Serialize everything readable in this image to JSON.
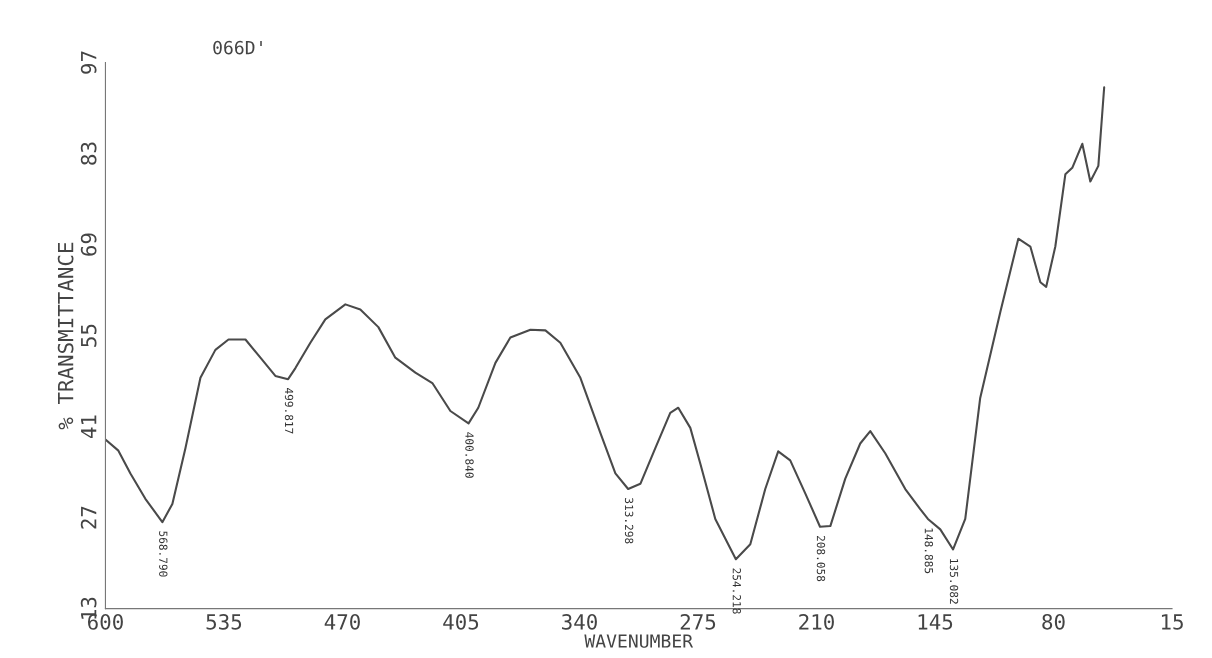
{
  "chart_data": {
    "type": "line",
    "title": "066D'",
    "xlabel": "WAVENUMBER",
    "ylabel": "% TRANSMITTANCE",
    "xlim": [
      600,
      15
    ],
    "ylim": [
      13,
      97
    ],
    "xticks": [
      600,
      535,
      470,
      405,
      340,
      275,
      210,
      145,
      80,
      15
    ],
    "yticks": [
      13,
      27,
      41,
      55,
      69,
      83,
      97
    ],
    "grid": false,
    "marker": "none",
    "line_style": "solid",
    "series": [
      {
        "color": "#4a4a4a",
        "x": [
          600,
          592.9,
          586.3,
          578.1,
          568.79,
          563.3,
          556.1,
          547.9,
          539.7,
          532.5,
          523.2,
          515.0,
          506.8,
          499.817,
          495.8,
          487.6,
          479.4,
          468.4,
          460.2,
          450.3,
          441.0,
          430.0,
          420.7,
          410.8,
          400.84,
          395.5,
          386.1,
          377.9,
          366.9,
          358.7,
          350.5,
          339.5,
          328.5,
          320.3,
          313.298,
          306.6,
          298.4,
          290.2,
          285.8,
          279.2,
          273.7,
          265.5,
          254.218,
          246.3,
          238.1,
          231.0,
          224.4,
          216.1,
          208.058,
          202.4,
          194.2,
          186.0,
          180.5,
          172.3,
          161.3,
          153.1,
          148.885,
          142.1,
          135.082,
          128.4,
          120.2,
          109.2,
          99.3,
          92.7,
          87.2,
          84.0,
          79.0,
          73.5,
          69.7,
          64.2,
          59.8,
          55.4,
          52.2
        ],
        "values": [
          39.0,
          37.3,
          33.8,
          29.9,
          26.3,
          29.1,
          37.7,
          48.5,
          52.8,
          54.4,
          54.4,
          51.6,
          48.8,
          48.3,
          50.0,
          53.9,
          57.5,
          59.8,
          59.0,
          56.3,
          51.6,
          49.3,
          47.7,
          43.4,
          41.5,
          43.9,
          50.8,
          54.7,
          55.9,
          55.8,
          53.9,
          48.5,
          40.0,
          33.8,
          31.4,
          32.2,
          37.7,
          43.1,
          43.9,
          40.8,
          35.3,
          26.8,
          20.6,
          22.9,
          31.4,
          37.2,
          35.8,
          30.7,
          25.6,
          25.7,
          33.0,
          38.4,
          40.3,
          36.9,
          31.4,
          28.3,
          26.8,
          25.2,
          22.1,
          26.8,
          45.4,
          58.6,
          69.9,
          68.7,
          63.2,
          62.5,
          68.7,
          79.8,
          80.8,
          84.5,
          78.7,
          81.1,
          93.2
        ]
      }
    ],
    "annotations": [
      {
        "text": "568.790",
        "x": 568.79,
        "y": 26.3
      },
      {
        "text": "499.817",
        "x": 499.817,
        "y": 48.3
      },
      {
        "text": "400.840",
        "x": 400.84,
        "y": 41.5
      },
      {
        "text": "313.298",
        "x": 313.298,
        "y": 31.4
      },
      {
        "text": "254.218",
        "x": 254.218,
        "y": 20.6
      },
      {
        "text": "208.058",
        "x": 208.058,
        "y": 25.6
      },
      {
        "text": "148.885",
        "x": 148.885,
        "y": 26.8
      },
      {
        "text": "135.082",
        "x": 135.082,
        "y": 22.1
      }
    ]
  }
}
